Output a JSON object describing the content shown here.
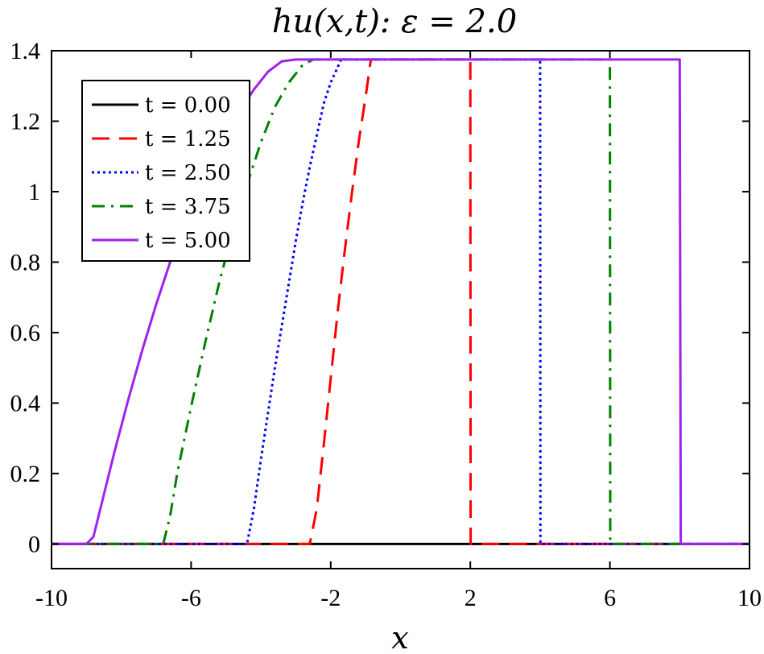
{
  "chart_data": {
    "type": "line",
    "title": "hu(x,t): ε = 2.0",
    "xlabel": "x",
    "ylabel": "",
    "xlim": [
      -10,
      10
    ],
    "ylim": [
      -0.07,
      1.4
    ],
    "xticks": [
      -10,
      -6,
      -2,
      2,
      6,
      10
    ],
    "yticks": [
      0,
      0.2,
      0.4,
      0.6,
      0.8,
      1,
      1.2,
      1.4
    ],
    "xtick_labels": [
      "-10",
      "-6",
      "-2",
      "2",
      "6",
      "10"
    ],
    "ytick_labels": [
      "0",
      "0.2",
      "0.4",
      "0.6",
      "0.8",
      "1",
      "1.2",
      "1.4"
    ],
    "grid": false,
    "legend_position": "top-left",
    "series": [
      {
        "name": "t = 0.00",
        "color": "#000000",
        "style": "solid",
        "x": [
          -10,
          10
        ],
        "y": [
          0,
          0
        ]
      },
      {
        "name": "t = 1.25",
        "color": "#ff0000",
        "style": "dashed",
        "x": [
          -10,
          -2.6,
          -2.4,
          -2.2,
          -2.0,
          -1.8,
          -1.6,
          -1.4,
          -1.2,
          -1.0,
          -0.85,
          2.0,
          2.01,
          10
        ],
        "y": [
          0,
          0,
          0.1,
          0.28,
          0.47,
          0.66,
          0.83,
          0.99,
          1.14,
          1.27,
          1.375,
          1.375,
          0,
          0
        ]
      },
      {
        "name": "t = 2.50",
        "color": "#0000ff",
        "style": "dotted",
        "x": [
          -10,
          -4.4,
          -4.2,
          -4.0,
          -3.8,
          -3.6,
          -3.4,
          -3.2,
          -3.0,
          -2.8,
          -2.6,
          -2.4,
          -2.2,
          -2.0,
          -1.7,
          4.0,
          4.01,
          10
        ],
        "y": [
          0,
          0,
          0.1,
          0.24,
          0.37,
          0.5,
          0.62,
          0.74,
          0.86,
          0.97,
          1.07,
          1.16,
          1.25,
          1.31,
          1.375,
          1.375,
          0,
          0
        ]
      },
      {
        "name": "t = 3.75",
        "color": "#008000",
        "style": "dashdot",
        "x": [
          -10,
          -6.8,
          -6.6,
          -6.4,
          -6.0,
          -5.6,
          -5.2,
          -4.8,
          -4.4,
          -4.0,
          -3.6,
          -3.2,
          -2.8,
          -2.5,
          6.0,
          6.01,
          10
        ],
        "y": [
          0,
          0,
          0.08,
          0.2,
          0.39,
          0.57,
          0.74,
          0.89,
          1.02,
          1.14,
          1.24,
          1.31,
          1.36,
          1.375,
          1.375,
          0,
          0
        ]
      },
      {
        "name": "t = 5.00",
        "color": "#a020f0",
        "style": "solid",
        "x": [
          -10,
          -9.0,
          -8.8,
          -8.6,
          -8.2,
          -7.8,
          -7.4,
          -7.0,
          -6.6,
          -6.2,
          -5.8,
          -5.4,
          -5.0,
          -4.6,
          -4.2,
          -3.8,
          -3.4,
          -3.0,
          8.0,
          8.03,
          10
        ],
        "y": [
          0,
          0,
          0.02,
          0.1,
          0.26,
          0.41,
          0.55,
          0.68,
          0.8,
          0.9,
          1.0,
          1.08,
          1.16,
          1.23,
          1.29,
          1.34,
          1.37,
          1.375,
          1.375,
          0,
          0
        ]
      }
    ]
  }
}
